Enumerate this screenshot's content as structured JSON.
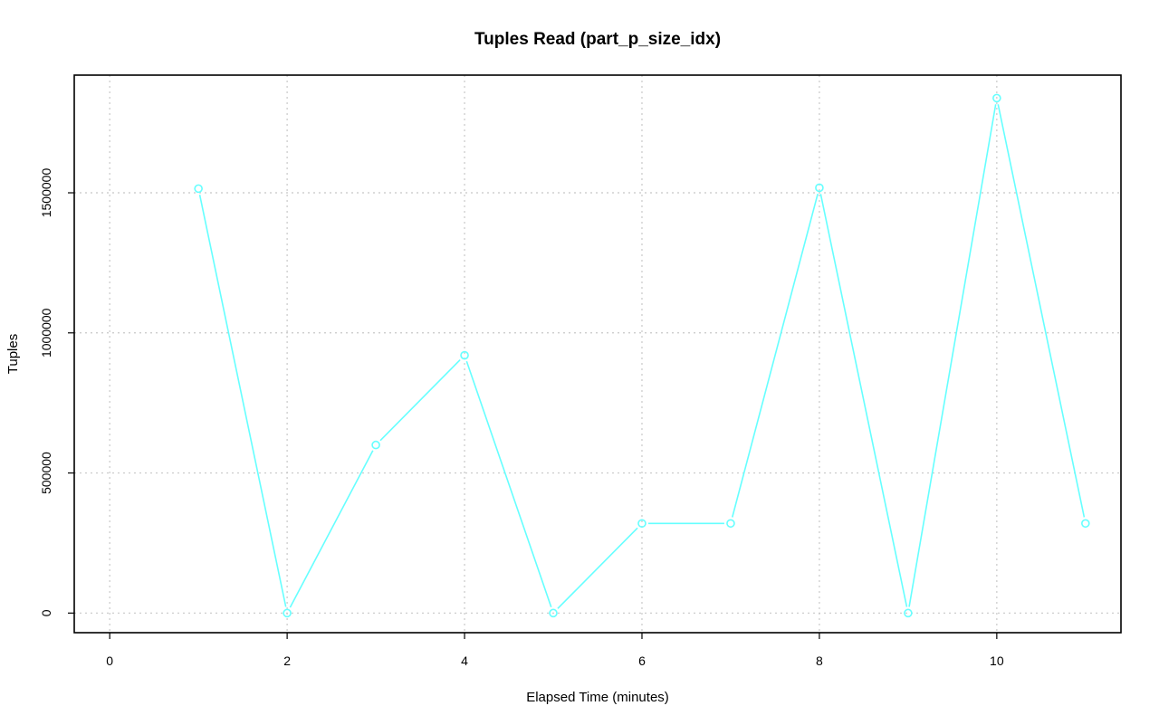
{
  "chart_data": {
    "type": "line",
    "title": "Tuples Read (part_p_size_idx)",
    "xlabel": "Elapsed Time (minutes)",
    "ylabel": "Tuples",
    "xlim": [
      -0.4,
      11.4
    ],
    "ylim": [
      -70000,
      1920000
    ],
    "x_ticks": [
      0,
      2,
      4,
      6,
      8,
      10
    ],
    "y_ticks": [
      0,
      500000,
      1000000,
      1500000
    ],
    "grid": true,
    "series": [
      {
        "color": "#66ffff",
        "marker": "open-circle",
        "x": [
          1,
          2,
          3,
          4,
          5,
          6,
          7,
          8,
          9,
          10,
          11
        ],
        "values": [
          1515000,
          0,
          600000,
          920000,
          0,
          320000,
          320000,
          1518000,
          0,
          1838000,
          320000
        ]
      }
    ]
  }
}
